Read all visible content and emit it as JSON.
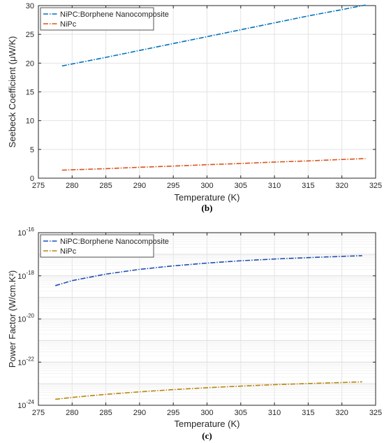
{
  "chart_data": [
    {
      "type": "line",
      "caption": "(b)",
      "xlabel": "Temperature (K)",
      "ylabel": "Seebeck Coefficient (μW/K)",
      "xlim": [
        275,
        325
      ],
      "ylim": [
        0,
        30
      ],
      "x_ticks": [
        "275",
        "280",
        "285",
        "290",
        "295",
        "300",
        "305",
        "310",
        "315",
        "320",
        "325"
      ],
      "y_ticks": [
        "0",
        "5",
        "10",
        "15",
        "20",
        "25",
        "30"
      ],
      "grid": true,
      "legend_position": "top-left",
      "series": [
        {
          "name": "NiPC:Borphene Nanocomposite",
          "color": "#0072BD",
          "style": "dash-dot",
          "x": [
            278.5,
            285,
            290,
            295,
            300,
            305,
            310,
            315,
            320,
            323.5
          ],
          "y": [
            19.5,
            21.0,
            22.2,
            23.4,
            24.6,
            25.8,
            27.0,
            28.2,
            29.3,
            30.1
          ]
        },
        {
          "name": "NiPc",
          "color": "#D95319",
          "style": "dash-dot",
          "x": [
            278.5,
            285,
            290,
            295,
            300,
            305,
            310,
            315,
            320,
            323.5
          ],
          "y": [
            1.4,
            1.65,
            1.9,
            2.1,
            2.35,
            2.55,
            2.8,
            3.0,
            3.25,
            3.4
          ]
        }
      ]
    },
    {
      "type": "line",
      "caption": "(c)",
      "xlabel": "Temperature (K)",
      "ylabel": "Power Factor (W/cm.K²)",
      "xlim": [
        275,
        325
      ],
      "ylim": [
        1e-24,
        1e-16
      ],
      "y_scale": "log",
      "x_ticks": [
        "275",
        "280",
        "285",
        "290",
        "295",
        "300",
        "305",
        "310",
        "315",
        "320",
        "325"
      ],
      "y_ticks": [
        {
          "base": "10",
          "exp": "-24",
          "value": 1e-24
        },
        {
          "base": "10",
          "exp": "-22",
          "value": 1e-22
        },
        {
          "base": "10",
          "exp": "-20",
          "value": 1e-20
        },
        {
          "base": "10",
          "exp": "-18",
          "value": 1e-18
        },
        {
          "base": "10",
          "exp": "-16",
          "value": 1e-16
        }
      ],
      "grid": true,
      "legend_position": "top-left",
      "series": [
        {
          "name": "NiPC:Borphene Nanocomposite",
          "color": "#1F4FB3",
          "style": "dash-dot",
          "x": [
            277.5,
            280,
            285,
            290,
            295,
            300,
            305,
            310,
            315,
            320,
            323
          ],
          "y": [
            3.5e-19,
            6e-19,
            1.2e-18,
            2e-18,
            2.9e-18,
            3.9e-18,
            5e-18,
            6e-18,
            7e-18,
            8e-18,
            8.6e-18
          ]
        },
        {
          "name": "NiPc",
          "color": "#B8860B",
          "style": "dash-dot",
          "x": [
            277.5,
            280,
            285,
            290,
            295,
            300,
            305,
            310,
            315,
            320,
            323
          ],
          "y": [
            1.9e-24,
            2.3e-24,
            3.2e-24,
            4.2e-24,
            5.3e-24,
            6.5e-24,
            7.7e-24,
            9e-24,
            1.02e-23,
            1.14e-23,
            1.22e-23
          ]
        }
      ]
    }
  ]
}
